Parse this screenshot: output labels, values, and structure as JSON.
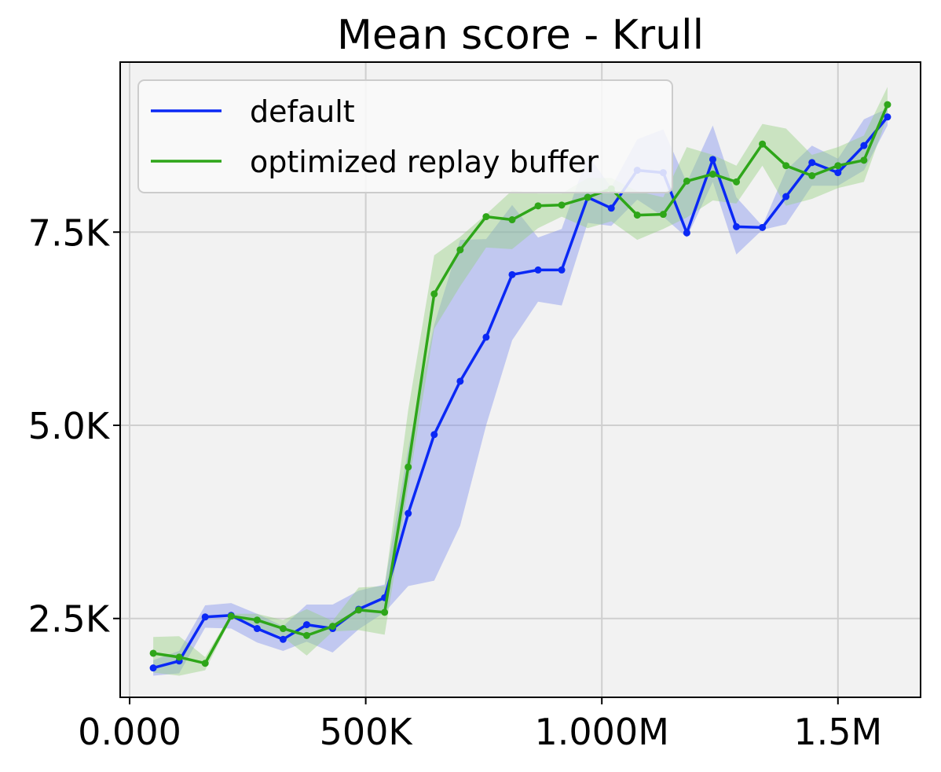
{
  "chart_data": {
    "type": "line",
    "title": "Mean score - Krull",
    "xlabel": "",
    "ylabel": "",
    "xlim": [
      -20000,
      1675000
    ],
    "ylim": [
      1480,
      9700
    ],
    "x_ticks": [
      {
        "value": 0,
        "label": "0.000"
      },
      {
        "value": 500000,
        "label": "500K"
      },
      {
        "value": 1000000,
        "label": "1.000M"
      },
      {
        "value": 1500000,
        "label": "1.5M"
      }
    ],
    "y_ticks": [
      {
        "value": 2500,
        "label": "2.5K"
      },
      {
        "value": 5000,
        "label": "5.0K"
      },
      {
        "value": 7500,
        "label": "7.5K"
      }
    ],
    "grid": true,
    "legend_position": "top-left",
    "x": [
      50000,
      105000,
      160000,
      215000,
      270000,
      325000,
      375000,
      430000,
      485000,
      540000,
      590000,
      645000,
      700000,
      755000,
      810000,
      865000,
      915000,
      970000,
      1020000,
      1075000,
      1130000,
      1180000,
      1235000,
      1285000,
      1340000,
      1390000,
      1445000,
      1500000,
      1555000,
      1605000
    ],
    "series": [
      {
        "name": "default",
        "color": "#0a28f5",
        "band_color": "#7f90ee",
        "values": [
          1860,
          1950,
          2520,
          2540,
          2370,
          2230,
          2420,
          2370,
          2620,
          2770,
          3860,
          4880,
          5570,
          6140,
          6950,
          7010,
          7010,
          7950,
          7810,
          8300,
          8270,
          7490,
          8440,
          7570,
          7560,
          7960,
          8400,
          8270,
          8620,
          8990
        ],
        "lower": [
          1760,
          1790,
          2380,
          2370,
          2190,
          2080,
          2200,
          2060,
          2360,
          2580,
          2920,
          2990,
          3700,
          5000,
          6100,
          6600,
          6550,
          7620,
          7580,
          7920,
          7700,
          7430,
          8150,
          7210,
          7530,
          7600,
          8100,
          8100,
          8300,
          8880
        ],
        "upper": [
          1960,
          2080,
          2670,
          2700,
          2560,
          2400,
          2680,
          2680,
          2860,
          2940,
          4700,
          6300,
          7400,
          7410,
          7850,
          7430,
          7540,
          8500,
          8080,
          8700,
          8830,
          8140,
          8880,
          7950,
          7580,
          8300,
          8620,
          8450,
          8960,
          9100
        ]
      },
      {
        "name": "optimized replay buffer",
        "color": "#2ea619",
        "band_color": "#94cf7e",
        "values": [
          2050,
          2000,
          1920,
          2530,
          2480,
          2370,
          2280,
          2400,
          2610,
          2580,
          4460,
          6700,
          7270,
          7700,
          7660,
          7840,
          7850,
          7950,
          8060,
          7720,
          7730,
          8160,
          8250,
          8150,
          8640,
          8360,
          8230,
          8360,
          8430,
          9150
        ],
        "lower": [
          1800,
          1760,
          1830,
          2500,
          2380,
          2260,
          2020,
          2330,
          2350,
          2290,
          4200,
          6250,
          6800,
          7300,
          7280,
          7550,
          7700,
          7550,
          7640,
          7400,
          7540,
          7690,
          7910,
          7870,
          8360,
          7840,
          7930,
          8070,
          8150,
          9000
        ],
        "upper": [
          2260,
          2270,
          2000,
          2560,
          2560,
          2480,
          2620,
          2470,
          2900,
          2920,
          5200,
          7200,
          7440,
          7730,
          8040,
          8000,
          8000,
          8200,
          8200,
          8030,
          7950,
          8600,
          8500,
          8360,
          8900,
          8840,
          8500,
          8600,
          8750,
          9380
        ]
      }
    ]
  }
}
